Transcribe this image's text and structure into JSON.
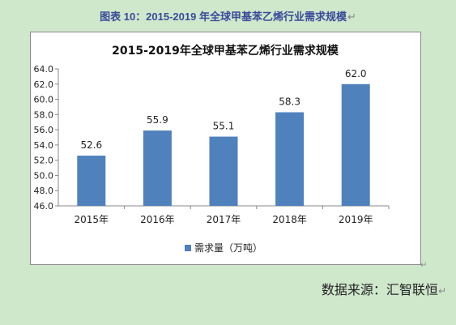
{
  "caption": "图表 10：2015-2019 年全球甲基苯乙烯行业需求规模",
  "source": "数据来源：汇智联恒",
  "colors": {
    "bar": "#4f81bd",
    "background": "#cfe8cc"
  },
  "chart_data": {
    "type": "bar",
    "title": "2015-2019年全球甲基苯乙烯行业需求规模",
    "categories": [
      "2015年",
      "2016年",
      "2017年",
      "2018年",
      "2019年"
    ],
    "series": [
      {
        "name": "需求量（万吨）",
        "values": [
          52.6,
          55.9,
          55.1,
          58.3,
          62.0
        ],
        "color": "#4f81bd"
      }
    ],
    "value_labels": [
      "52.6",
      "55.9",
      "55.1",
      "58.3",
      "62.0"
    ],
    "y_ticks": [
      "46.0",
      "48.0",
      "50.0",
      "52.0",
      "54.0",
      "56.0",
      "58.0",
      "60.0",
      "62.0",
      "64.0"
    ],
    "ylim": [
      46,
      64
    ],
    "xlabel": "",
    "ylabel": "",
    "grid": false,
    "legend_position": "bottom"
  }
}
